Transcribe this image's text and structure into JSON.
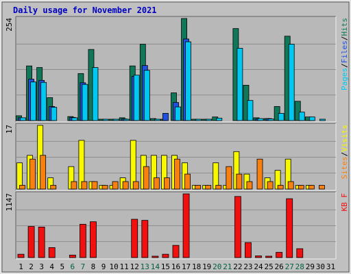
{
  "chart_data": [
    {
      "type": "bar",
      "title": "Daily usage for November 2021",
      "ymax_label": "254",
      "legend": [
        "Pages",
        "Files",
        "Hits"
      ],
      "colors": {
        "Pages": "#00c8f0",
        "Files": "#2050e0",
        "Hits": "#107858"
      },
      "ymax": 254,
      "categories": [
        "1",
        "2",
        "3",
        "4",
        "5",
        "6",
        "7",
        "8",
        "9",
        "10",
        "11",
        "12",
        "13",
        "14",
        "15",
        "16",
        "17",
        "18",
        "19",
        "20",
        "21",
        "22",
        "23",
        "24",
        "25",
        "26",
        "27",
        "28",
        "29",
        "30",
        "31"
      ],
      "series": [
        {
          "name": "Hits",
          "values": [
            12,
            136,
            132,
            57,
            0,
            10,
            117,
            177,
            2,
            2,
            7,
            136,
            190,
            5,
            2,
            69,
            254,
            2,
            3,
            9,
            0,
            229,
            88,
            7,
            5,
            35,
            210,
            48,
            9,
            0,
            0
          ]
        },
        {
          "name": "Files",
          "values": [
            7,
            103,
            100,
            35,
            0,
            8,
            94,
            0,
            0,
            0,
            4,
            110,
            137,
            0,
            18,
            45,
            203,
            0,
            0,
            0,
            0,
            0,
            0,
            4,
            5,
            0,
            0,
            0,
            0,
            0,
            0
          ]
        },
        {
          "name": "Pages",
          "values": [
            7,
            96,
            95,
            33,
            0,
            7,
            90,
            132,
            1,
            1,
            3,
            113,
            125,
            2,
            0,
            34,
            196,
            1,
            2,
            6,
            0,
            180,
            50,
            5,
            4,
            18,
            190,
            21,
            9,
            2,
            0
          ]
        }
      ]
    },
    {
      "type": "bar",
      "ymax_label": "17",
      "legend": [
        "Sites",
        "Visits"
      ],
      "colors": {
        "Sites": "#f88010",
        "Visits": "#f8f800"
      },
      "ymax": 17,
      "categories": [
        "1",
        "2",
        "3",
        "4",
        "5",
        "6",
        "7",
        "8",
        "9",
        "10",
        "11",
        "12",
        "13",
        "14",
        "15",
        "16",
        "17",
        "18",
        "19",
        "20",
        "21",
        "22",
        "23",
        "24",
        "25",
        "26",
        "27",
        "28",
        "29",
        "30",
        "31"
      ],
      "series": [
        {
          "name": "Visits",
          "values": [
            7,
            9,
            17,
            3,
            0,
            6,
            13,
            2,
            1,
            1,
            3,
            13,
            9,
            9,
            9,
            9,
            7,
            1,
            1,
            7,
            1,
            10,
            4,
            0,
            3,
            5,
            8,
            1,
            1,
            0,
            0
          ]
        },
        {
          "name": "Sites",
          "values": [
            1,
            8,
            9,
            1,
            0,
            2,
            2,
            2,
            1,
            2,
            2,
            2,
            6,
            3,
            3,
            8,
            4,
            1,
            1,
            1,
            6,
            4,
            2,
            8,
            2,
            1,
            2,
            1,
            1,
            1,
            0
          ]
        }
      ]
    },
    {
      "type": "bar",
      "ymax_label": "1147",
      "legend": [
        "KB F"
      ],
      "colors": {
        "KB F": "#f01010"
      },
      "ymax": 1147,
      "categories": [
        "1",
        "2",
        "3",
        "4",
        "5",
        "6",
        "7",
        "8",
        "9",
        "10",
        "11",
        "12",
        "13",
        "14",
        "15",
        "16",
        "17",
        "18",
        "19",
        "20",
        "21",
        "22",
        "23",
        "24",
        "25",
        "26",
        "27",
        "28",
        "29",
        "30",
        "31"
      ],
      "series": [
        {
          "name": "KB F",
          "values": [
            60,
            560,
            550,
            180,
            0,
            45,
            600,
            645,
            0,
            0,
            0,
            690,
            670,
            25,
            60,
            220,
            1147,
            0,
            0,
            0,
            0,
            1100,
            270,
            30,
            25,
            95,
            1060,
            160,
            0,
            0,
            0
          ]
        }
      ]
    }
  ],
  "x_labels": [
    "1",
    "2",
    "3",
    "4",
    "5",
    "6",
    "7",
    "8",
    "9",
    "10",
    "11",
    "12",
    "13",
    "14",
    "15",
    "16",
    "17",
    "18",
    "19",
    "20",
    "21",
    "22",
    "23",
    "24",
    "25",
    "26",
    "27",
    "28",
    "29",
    "30",
    "31"
  ],
  "weekend_days": [
    6,
    7,
    13,
    14,
    20,
    21,
    27,
    28
  ],
  "colors": {
    "background": "#c0c0c0",
    "plot": "#b8b8b8",
    "title": "#0000c0",
    "weekday_label": "#000000",
    "weekend_label": "#006040",
    "grid": "#808080"
  }
}
